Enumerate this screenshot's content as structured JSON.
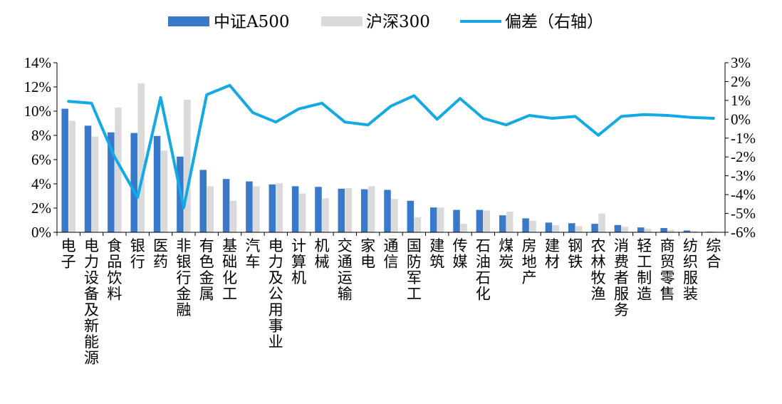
{
  "chart_data": {
    "type": "bar",
    "categories": [
      "电子",
      "电力设备及新能源",
      "食品饮料",
      "银行",
      "医药",
      "非银行金融",
      "有色金属",
      "基础化工",
      "汽车",
      "电力及公用事业",
      "计算机",
      "机械",
      "交通运输",
      "家电",
      "通信",
      "国防军工",
      "建筑",
      "传媒",
      "石油石化",
      "煤炭",
      "房地产",
      "建材",
      "钢铁",
      "农林牧渔",
      "消费者服务",
      "轻工制造",
      "商贸零售",
      "纺织服装",
      "综合"
    ],
    "series": [
      {
        "name": "中证A500",
        "type": "bar",
        "axis": "left",
        "color": "#3a78c9",
        "values": [
          10.2,
          8.8,
          8.25,
          8.2,
          7.95,
          6.25,
          5.15,
          4.4,
          4.2,
          3.95,
          3.8,
          3.75,
          3.6,
          3.55,
          3.5,
          2.6,
          2.05,
          1.85,
          1.85,
          1.4,
          1.15,
          0.8,
          0.75,
          0.7,
          0.6,
          0.4,
          0.35,
          0.15,
          0.05
        ]
      },
      {
        "name": "沪深300",
        "type": "bar",
        "axis": "left",
        "color": "#dadada",
        "values": [
          9.2,
          7.9,
          10.3,
          12.3,
          6.75,
          10.95,
          3.8,
          2.6,
          3.8,
          4.05,
          3.2,
          2.8,
          3.65,
          3.8,
          2.75,
          1.25,
          2.05,
          0.7,
          1.8,
          1.7,
          0.95,
          0.6,
          0.5,
          1.55,
          0.45,
          0.3,
          0.2,
          0.1,
          0.05
        ]
      },
      {
        "name": "偏差（右轴）",
        "type": "line",
        "axis": "right",
        "color": "#12a9e6",
        "values": [
          0.95,
          0.85,
          -2.0,
          -4.15,
          1.15,
          -4.7,
          1.3,
          1.8,
          0.35,
          -0.15,
          0.55,
          0.85,
          -0.15,
          -0.3,
          0.7,
          1.25,
          0.0,
          1.1,
          0.05,
          -0.3,
          0.2,
          0.05,
          0.15,
          -0.85,
          0.15,
          0.25,
          0.2,
          0.1,
          0.05
        ]
      }
    ],
    "y_left": {
      "min": 0,
      "max": 14,
      "step": 2,
      "tick_labels": [
        "0%",
        "2%",
        "4%",
        "6%",
        "8%",
        "10%",
        "12%",
        "14%"
      ]
    },
    "y_right": {
      "min": -6,
      "max": 3,
      "step": 1,
      "tick_labels": [
        "-6%",
        "-5%",
        "-4%",
        "-3%",
        "-2%",
        "-1%",
        "0%",
        "1%",
        "2%",
        "3%"
      ]
    },
    "grid": false,
    "legend_position": "top-center"
  }
}
